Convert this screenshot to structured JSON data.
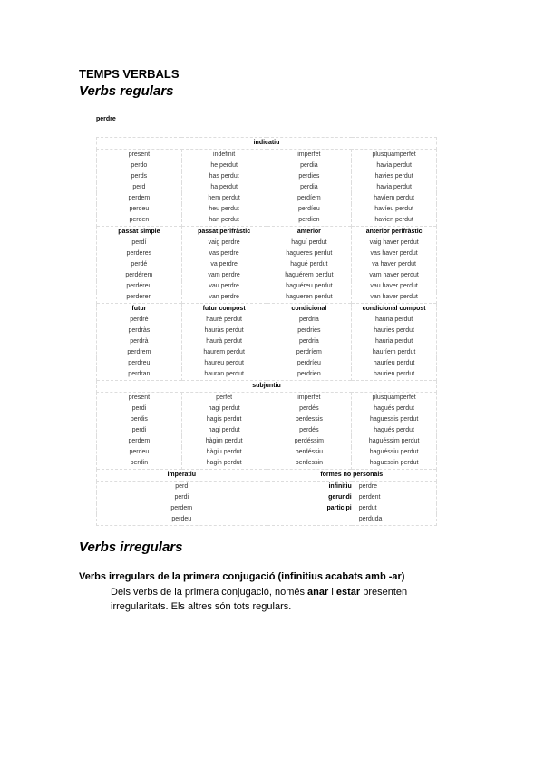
{
  "title": "TEMPS VERBALS",
  "subtitle": "Verbs regulars",
  "verb": "perdre",
  "indicatiu": {
    "label": "indicatiu",
    "blocks": [
      {
        "headers": [
          "present",
          "indefinit",
          "imperfet",
          "plusquamperfet"
        ],
        "rows": [
          [
            "perdo",
            "he perdut",
            "perdia",
            "havia perdut"
          ],
          [
            "perds",
            "has perdut",
            "perdies",
            "havies perdut"
          ],
          [
            "perd",
            "ha perdut",
            "perdia",
            "havia perdut"
          ],
          [
            "perdem",
            "hem perdut",
            "perdíem",
            "havíem perdut"
          ],
          [
            "perdeu",
            "heu perdut",
            "perdíeu",
            "havíeu perdut"
          ],
          [
            "perden",
            "han perdut",
            "perdien",
            "havien perdut"
          ]
        ]
      },
      {
        "headers": [
          "passat simple",
          "passat perifràstic",
          "anterior",
          "anterior perifràstic"
        ],
        "rows": [
          [
            "perdí",
            "vaig perdre",
            "haguí perdut",
            "vaig haver perdut"
          ],
          [
            "perderes",
            "vas perdre",
            "hagueres perdut",
            "vas haver perdut"
          ],
          [
            "perdé",
            "va perdre",
            "hagué perdut",
            "va haver perdut"
          ],
          [
            "perdérem",
            "vam perdre",
            "haguérem perdut",
            "vam haver perdut"
          ],
          [
            "perdéreu",
            "vau perdre",
            "haguéreu perdut",
            "vau haver perdut"
          ],
          [
            "perderen",
            "van perdre",
            "hagueren perdut",
            "van haver perdut"
          ]
        ]
      },
      {
        "headers": [
          "futur",
          "futur compost",
          "condicional",
          "condicional compost"
        ],
        "rows": [
          [
            "perdré",
            "hauré perdut",
            "perdria",
            "hauria perdut"
          ],
          [
            "perdràs",
            "hauràs perdut",
            "perdries",
            "hauries perdut"
          ],
          [
            "perdrà",
            "haurà perdut",
            "perdria",
            "hauria perdut"
          ],
          [
            "perdrem",
            "haurem perdut",
            "perdríem",
            "hauríem perdut"
          ],
          [
            "perdreu",
            "haureu perdut",
            "perdríeu",
            "hauríeu perdut"
          ],
          [
            "perdran",
            "hauran perdut",
            "perdrien",
            "haurien perdut"
          ]
        ]
      }
    ]
  },
  "subjuntiu": {
    "label": "subjuntiu",
    "blocks": [
      {
        "headers": [
          "present",
          "perfet",
          "imperfet",
          "plusquamperfet"
        ],
        "rows": [
          [
            "perdi",
            "hagi perdut",
            "perdés",
            "hagués perdut"
          ],
          [
            "perdis",
            "hagis perdut",
            "perdessis",
            "haguessis perdut"
          ],
          [
            "perdi",
            "hagi perdut",
            "perdés",
            "hagués perdut"
          ],
          [
            "perdem",
            "hàgim perdut",
            "perdéssim",
            "haguéssim perdut"
          ],
          [
            "perdeu",
            "hàgiu perdut",
            "perdéssiu",
            "haguéssiu perdut"
          ],
          [
            "perdin",
            "hagin perdut",
            "perdessin",
            "haguessin perdut"
          ]
        ]
      }
    ]
  },
  "imperatiu": {
    "label": "imperatiu",
    "rows": [
      "perd",
      "perdi",
      "perdem",
      "perdeu"
    ]
  },
  "formes": {
    "label": "formes no personals",
    "rows": [
      {
        "label": "infinitiu",
        "value": "perdre"
      },
      {
        "label": "gerundi",
        "value": "perdent"
      },
      {
        "label": "participi",
        "value": "perdut"
      },
      {
        "label": "",
        "value": "perduda"
      }
    ]
  },
  "irregulars": {
    "title": "Verbs irregulars",
    "heading": "Verbs irregulars de la primera conjugació (infinitius acabats amb -ar)",
    "paragraph": [
      {
        "text": "Dels verbs de la primera conjugació, només ",
        "bold": false
      },
      {
        "text": "anar",
        "bold": true
      },
      {
        "text": " i ",
        "bold": false
      },
      {
        "text": "estar",
        "bold": true
      },
      {
        "text": " presenten irregularitats. Els altres són tots regulars.",
        "bold": false
      }
    ]
  }
}
